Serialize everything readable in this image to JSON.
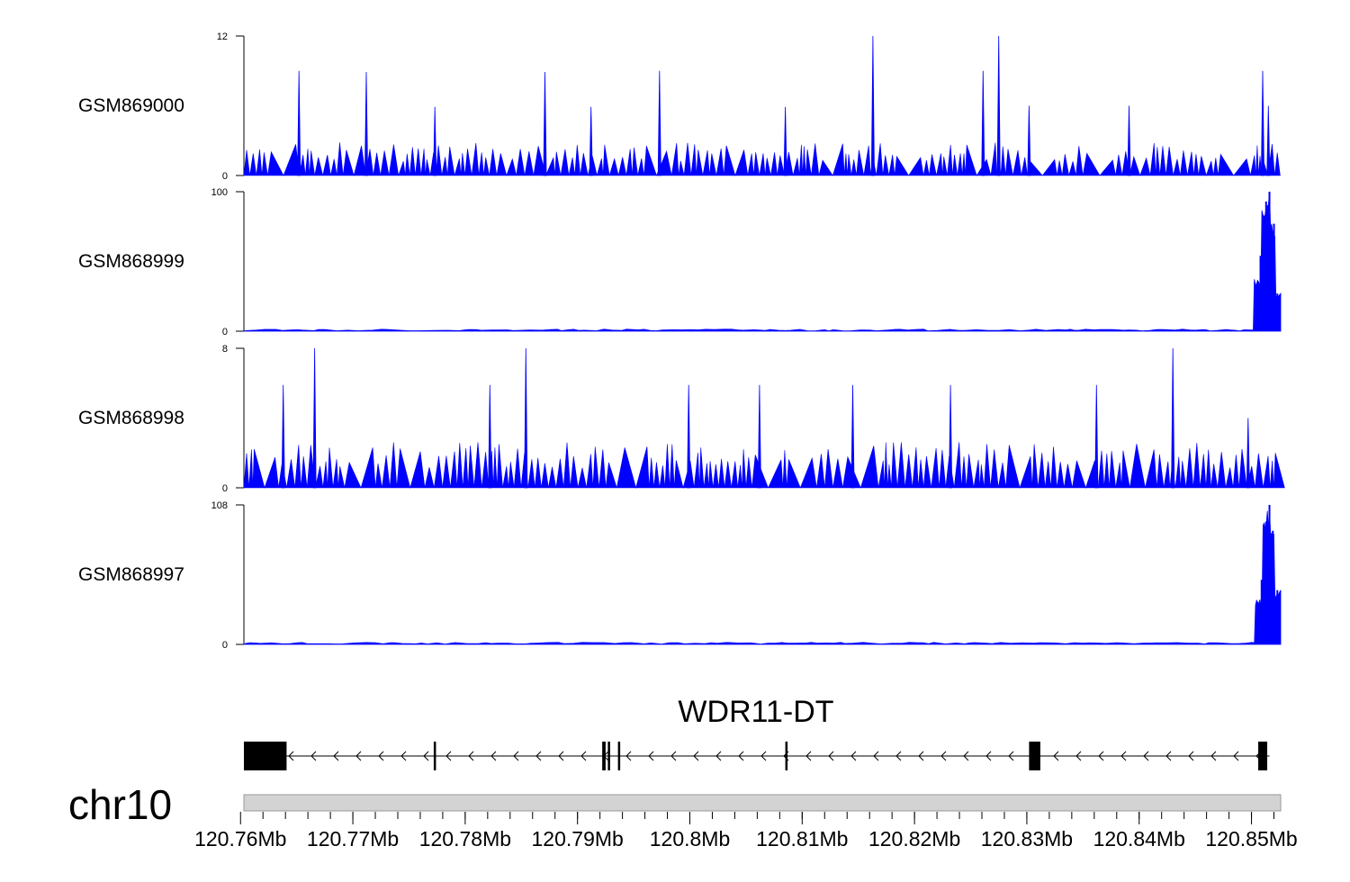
{
  "chart_data": {
    "type": "area",
    "title": "",
    "region": {
      "chrom": "chr10",
      "start_mb": 120.7603,
      "end_mb": 120.8526
    },
    "colors": {
      "signal": "#0000ff",
      "gene": "#000000",
      "ideogram": "#d3d3d3",
      "axis": "#000000"
    },
    "tracks": [
      {
        "name": "GSM869000",
        "ylim": [
          0,
          12
        ],
        "yticks": [
          "0",
          "12"
        ],
        "style": "noisy",
        "base_level": 2.7,
        "peaks": [
          [
            120.7652,
            9.0
          ],
          [
            120.7712,
            8.9
          ],
          [
            120.7773,
            5.9
          ],
          [
            120.7871,
            8.9
          ],
          [
            120.7912,
            5.9
          ],
          [
            120.7973,
            9.0
          ],
          [
            120.8085,
            5.9
          ],
          [
            120.8163,
            12.0
          ],
          [
            120.8261,
            9.0
          ],
          [
            120.8275,
            12.0
          ],
          [
            120.8302,
            6.0
          ],
          [
            120.8391,
            6.0
          ],
          [
            120.851,
            9.0
          ],
          [
            120.8515,
            6.0
          ]
        ]
      },
      {
        "name": "GSM868999",
        "ylim": [
          0,
          100
        ],
        "yticks": [
          "0",
          "100"
        ],
        "style": "flat-peak",
        "base_level": 1.2,
        "peaks": [
          [
            120.8508,
            54.0
          ],
          [
            120.8513,
            93.0
          ],
          [
            120.8516,
            100.0
          ],
          [
            120.852,
            77.0
          ],
          [
            120.8523,
            27.0
          ]
        ]
      },
      {
        "name": "GSM868998",
        "ylim": [
          0,
          8
        ],
        "yticks": [
          "0",
          "8"
        ],
        "style": "noisy",
        "base_level": 2.5,
        "peaks": [
          [
            120.7638,
            5.9
          ],
          [
            120.7666,
            8.0
          ],
          [
            120.7822,
            5.9
          ],
          [
            120.7854,
            8.0
          ],
          [
            120.7999,
            5.9
          ],
          [
            120.8062,
            5.9
          ],
          [
            120.8145,
            5.9
          ],
          [
            120.8232,
            5.9
          ],
          [
            120.8362,
            5.9
          ],
          [
            120.843,
            8.0
          ],
          [
            120.8497,
            4.0
          ]
        ]
      },
      {
        "name": "GSM868997",
        "ylim": [
          0,
          108
        ],
        "yticks": [
          "0",
          "108"
        ],
        "style": "flat-peak",
        "base_level": 1.3,
        "peaks": [
          [
            120.8509,
            50.0
          ],
          [
            120.8513,
            95.0
          ],
          [
            120.8516,
            108.0
          ],
          [
            120.8519,
            88.0
          ],
          [
            120.8523,
            42.0
          ]
        ]
      }
    ],
    "gene": {
      "label": "WDR11-DT",
      "strand": "-",
      "span": [
        120.7603,
        120.8516
      ],
      "exons": [
        [
          120.7603,
          120.7641
        ],
        [
          120.7772,
          120.7774
        ],
        [
          120.7922,
          120.7925
        ],
        [
          120.7927,
          120.7929
        ],
        [
          120.7936,
          120.7938
        ],
        [
          120.8085,
          120.8087
        ],
        [
          120.8302,
          120.8312
        ],
        [
          120.8506,
          120.8514
        ]
      ]
    },
    "chromosome_label": "chr10",
    "xaxis": {
      "ticks": [
        120.76,
        120.77,
        120.78,
        120.79,
        120.8,
        120.81,
        120.82,
        120.83,
        120.84,
        120.85
      ],
      "tick_labels": [
        "120.76Mb",
        "120.77Mb",
        "120.78Mb",
        "120.79Mb",
        "120.8Mb",
        "120.81Mb",
        "120.82Mb",
        "120.83Mb",
        "120.84Mb",
        "120.85Mb"
      ],
      "minor_step": 0.002
    }
  }
}
